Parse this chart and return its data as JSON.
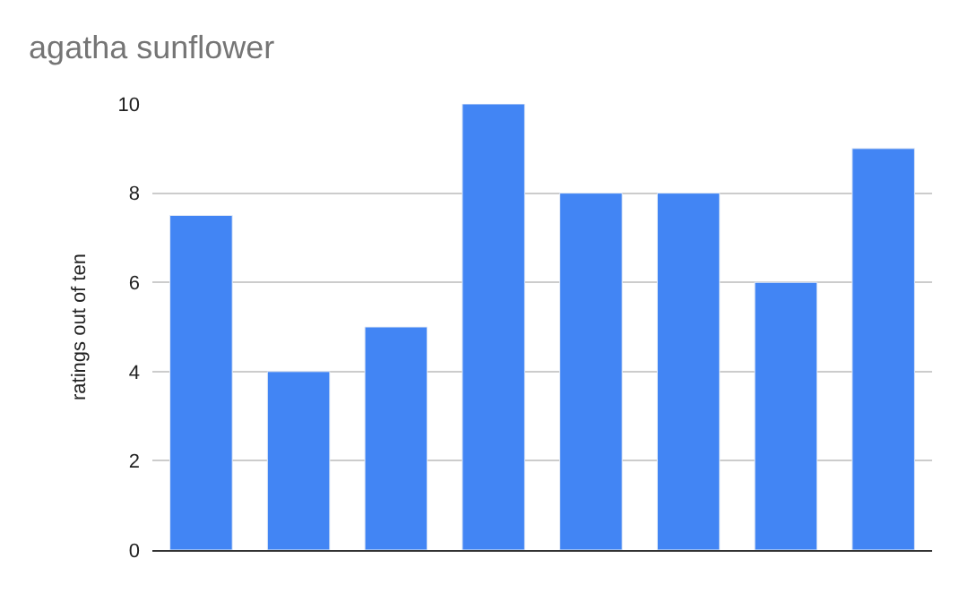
{
  "chart_data": {
    "type": "bar",
    "title": "agatha sunflower",
    "ylabel": "ratings out of ten",
    "categories": [
      null,
      null,
      null,
      null,
      null,
      null,
      null,
      null
    ],
    "values": [
      7.5,
      4,
      5,
      10,
      8,
      8,
      6,
      9
    ],
    "color": "#4285f4",
    "ylim": [
      0,
      10
    ],
    "yticks": [
      0,
      2,
      4,
      6,
      8,
      10
    ],
    "grid": "y",
    "tick_labels": "y",
    "legend": false
  }
}
